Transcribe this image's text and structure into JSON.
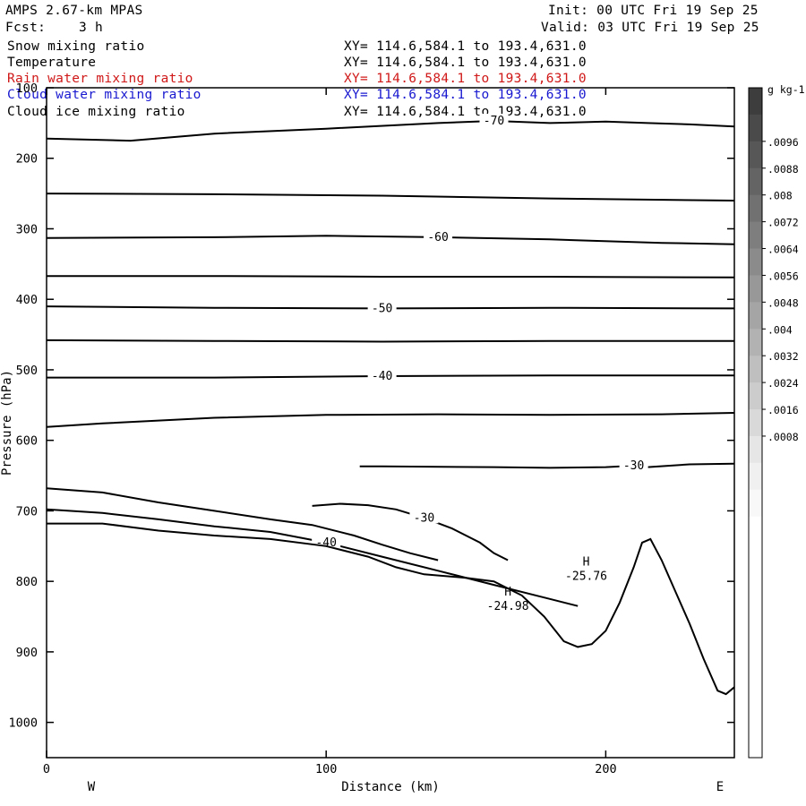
{
  "header": {
    "model": "AMPS 2.67-km MPAS",
    "init": "Init: 00 UTC Fri 19 Sep 25",
    "fcst_label": "Fcst:",
    "fcst_value": "3 h",
    "valid": "Valid: 03 UTC Fri 19 Sep 25"
  },
  "fields": [
    {
      "name": "Snow mixing ratio",
      "xy": "XY= 114.6,584.1 to 193.4,631.0",
      "color": "#000000"
    },
    {
      "name": "Temperature",
      "xy": "XY= 114.6,584.1 to 193.4,631.0",
      "color": "#000000"
    },
    {
      "name": "Rain water mixing ratio",
      "xy": "XY= 114.6,584.1 to 193.4,631.0",
      "color": "#d01818"
    },
    {
      "name": "Cloud water mixing ratio",
      "xy": "XY= 114.6,584.1 to 193.4,631.0",
      "color": "#1818d0"
    },
    {
      "name": "Cloud ice mixing ratio",
      "xy": "XY= 114.6,584.1 to 193.4,631.0",
      "color": "#000000"
    }
  ],
  "chart_data": {
    "type": "contour",
    "xlabel": "Distance (km)",
    "ylabel": "Pressure (hPa)",
    "xlim": [
      0,
      246
    ],
    "ylim": [
      1050,
      100
    ],
    "x_ticks": [
      0,
      100,
      200
    ],
    "y_ticks": [
      100,
      200,
      300,
      400,
      500,
      600,
      700,
      800,
      900,
      1000
    ],
    "direction_left": "W",
    "direction_right": "E",
    "isotherms": [
      {
        "label": "-70",
        "points": [
          [
            0,
            172
          ],
          [
            30,
            175
          ],
          [
            60,
            165
          ],
          [
            100,
            158
          ],
          [
            140,
            150
          ],
          [
            160,
            147
          ],
          [
            180,
            150
          ],
          [
            200,
            148
          ],
          [
            215,
            150
          ],
          [
            230,
            152
          ],
          [
            246,
            155
          ]
        ]
      },
      {
        "label": "",
        "points": [
          [
            0,
            250
          ],
          [
            60,
            251
          ],
          [
            120,
            253
          ],
          [
            180,
            257
          ],
          [
            246,
            260
          ]
        ]
      },
      {
        "label": "-60",
        "points": [
          [
            0,
            313
          ],
          [
            60,
            312
          ],
          [
            100,
            310
          ],
          [
            140,
            312
          ],
          [
            180,
            315
          ],
          [
            220,
            320
          ],
          [
            246,
            322
          ]
        ]
      },
      {
        "label": "",
        "points": [
          [
            0,
            367
          ],
          [
            60,
            367
          ],
          [
            120,
            368
          ],
          [
            180,
            368
          ],
          [
            246,
            369
          ]
        ]
      },
      {
        "label": "-50",
        "points": [
          [
            0,
            410
          ],
          [
            60,
            412
          ],
          [
            120,
            413
          ],
          [
            180,
            412
          ],
          [
            246,
            413
          ]
        ]
      },
      {
        "label": "",
        "points": [
          [
            0,
            458
          ],
          [
            60,
            459
          ],
          [
            120,
            460
          ],
          [
            180,
            459
          ],
          [
            246,
            459
          ]
        ]
      },
      {
        "label": "-40",
        "points": [
          [
            0,
            511
          ],
          [
            60,
            511
          ],
          [
            120,
            509
          ],
          [
            180,
            508
          ],
          [
            246,
            508
          ]
        ]
      },
      {
        "label": "",
        "points": [
          [
            0,
            581
          ],
          [
            20,
            576
          ],
          [
            60,
            568
          ],
          [
            100,
            564
          ],
          [
            140,
            563
          ],
          [
            180,
            564
          ],
          [
            220,
            563
          ],
          [
            246,
            561
          ]
        ]
      },
      {
        "label": "-30",
        "points": [
          [
            112,
            637
          ],
          [
            120,
            637
          ],
          [
            160,
            638
          ],
          [
            180,
            639
          ],
          [
            200,
            638
          ],
          [
            210,
            636
          ],
          [
            212,
            640
          ],
          [
            215,
            638
          ],
          [
            230,
            634
          ],
          [
            246,
            633
          ]
        ]
      },
      {
        "label": "-40",
        "points": [
          [
            0,
            698
          ],
          [
            20,
            703
          ],
          [
            40,
            712
          ],
          [
            60,
            722
          ],
          [
            80,
            730
          ],
          [
            100,
            745
          ],
          [
            120,
            765
          ],
          [
            140,
            785
          ],
          [
            160,
            805
          ],
          [
            180,
            825
          ],
          [
            190,
            835
          ]
        ]
      },
      {
        "label": "",
        "points": [
          [
            0,
            668
          ],
          [
            20,
            674
          ],
          [
            40,
            688
          ],
          [
            60,
            700
          ],
          [
            80,
            712
          ],
          [
            95,
            720
          ],
          [
            110,
            735
          ],
          [
            120,
            748
          ],
          [
            130,
            760
          ],
          [
            140,
            770
          ]
        ]
      },
      {
        "label": "-30",
        "points": [
          [
            95,
            693
          ],
          [
            105,
            690
          ],
          [
            115,
            692
          ],
          [
            125,
            698
          ],
          [
            135,
            710
          ],
          [
            145,
            725
          ],
          [
            155,
            745
          ],
          [
            160,
            760
          ],
          [
            165,
            770
          ]
        ]
      }
    ],
    "terrain": [
      [
        0,
        718
      ],
      [
        20,
        718
      ],
      [
        40,
        728
      ],
      [
        60,
        735
      ],
      [
        80,
        740
      ],
      [
        100,
        750
      ],
      [
        115,
        765
      ],
      [
        125,
        780
      ],
      [
        135,
        790
      ],
      [
        150,
        795
      ],
      [
        160,
        800
      ],
      [
        170,
        820
      ],
      [
        178,
        850
      ],
      [
        182,
        870
      ],
      [
        185,
        885
      ],
      [
        190,
        893
      ],
      [
        195,
        889
      ],
      [
        200,
        870
      ],
      [
        205,
        830
      ],
      [
        210,
        780
      ],
      [
        213,
        745
      ],
      [
        216,
        740
      ],
      [
        220,
        770
      ],
      [
        225,
        815
      ],
      [
        230,
        860
      ],
      [
        235,
        910
      ],
      [
        240,
        955
      ],
      [
        243,
        960
      ],
      [
        246,
        950
      ]
    ],
    "highs": [
      {
        "label": "H",
        "value": "-25.76",
        "x": 193,
        "p": 790
      },
      {
        "label": "H",
        "value": "-24.98",
        "x": 165,
        "p": 833
      }
    ],
    "colorbar": {
      "units": "g kg-1",
      "labels": [
        ".0096",
        ".0088",
        ".008",
        ".0072",
        ".0064",
        ".0056",
        ".0048",
        ".004",
        ".0032",
        ".0024",
        ".0016",
        ".0008"
      ],
      "colors": [
        "#3d3d3d",
        "#4a4a4a",
        "#575757",
        "#646464",
        "#717171",
        "#7e7e7e",
        "#8b8b8b",
        "#989898",
        "#a5a5a5",
        "#b2b2b2",
        "#bfbfbf",
        "#cccccc",
        "#d9d9d9",
        "#e6e6e6",
        "#f0f0f0",
        "#f8f8f8",
        "#ffffff",
        "#ffffff",
        "#ffffff",
        "#ffffff",
        "#ffffff",
        "#ffffff",
        "#ffffff",
        "#ffffff",
        "#ffffff"
      ]
    }
  }
}
